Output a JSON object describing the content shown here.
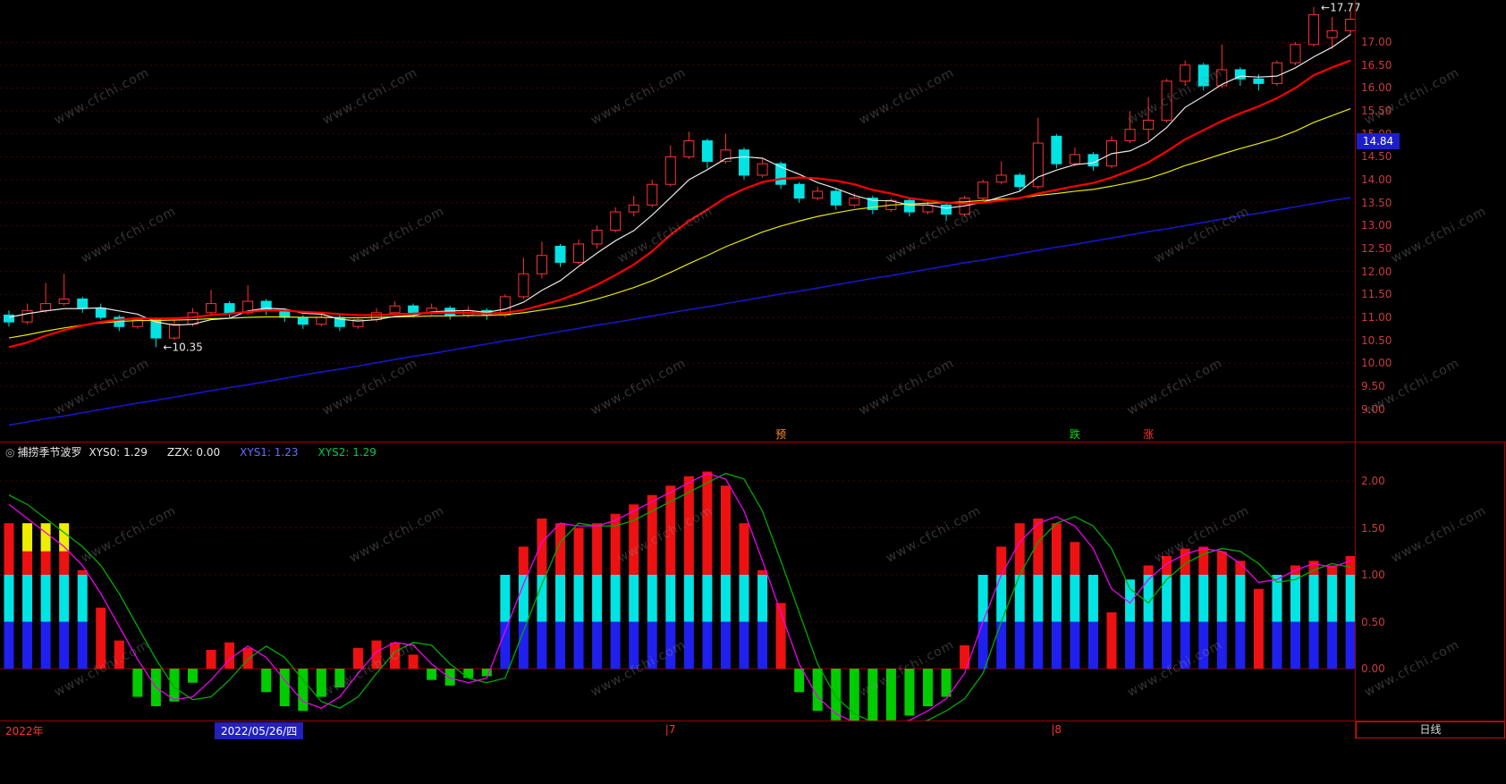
{
  "watermark": {
    "text": "www.cfchi.com"
  },
  "colors": {
    "candle_up": "#ff3232",
    "candle_down": "#00e4e4",
    "ma_white": "#e8e8e8",
    "ma_yellow": "#e8e800",
    "ma_red": "#ff0000",
    "ma_blue": "#1616c8",
    "bar_red": "#ee1111",
    "bar_green": "#00cc00",
    "bar_cyan": "#00e4e4",
    "bar_blue": "#2020ee",
    "bar_yellow": "#eeee00",
    "line_magenta": "#ee00ee",
    "line_green": "#00aa00",
    "axis_text": "#c83c3c",
    "badge_bg": "#1e1ec8",
    "grid": "#4a0000",
    "separator": "#9b0000"
  },
  "price_axis": {
    "ticks": [
      "17.00",
      "16.50",
      "16.00",
      "15.50",
      "15.00",
      "14.50",
      "14.00",
      "13.50",
      "13.00",
      "12.50",
      "12.00",
      "11.50",
      "11.00",
      "10.50",
      "10.00",
      "9.50",
      "9.00"
    ],
    "current_badge": "14.84"
  },
  "chart_data": [
    {
      "type": "candlestick",
      "ylim": [
        8.4,
        17.92
      ],
      "annotations": {
        "high": "←17.77",
        "low": "←10.35",
        "high_index": 71,
        "low_index": 8
      },
      "signals": [
        {
          "i": 42,
          "label": "预",
          "color": "#ff9020"
        },
        {
          "i": 58,
          "label": "跌",
          "color": "#00e000"
        },
        {
          "i": 62,
          "label": "涨",
          "color": "#ff3030"
        }
      ],
      "candles": [
        [
          11.05,
          11.15,
          10.8,
          10.9
        ],
        [
          10.9,
          11.3,
          10.85,
          11.15
        ],
        [
          11.15,
          11.75,
          11.1,
          11.3
        ],
        [
          11.3,
          11.95,
          11.25,
          11.4
        ],
        [
          11.4,
          11.45,
          11.1,
          11.2
        ],
        [
          11.2,
          11.3,
          10.95,
          11.0
        ],
        [
          11.0,
          11.05,
          10.7,
          10.8
        ],
        [
          10.8,
          11.0,
          10.75,
          10.95
        ],
        [
          10.95,
          11.0,
          10.35,
          10.55
        ],
        [
          10.55,
          10.95,
          10.5,
          10.85
        ],
        [
          10.85,
          11.2,
          10.8,
          11.1
        ],
        [
          11.1,
          11.6,
          11.05,
          11.3
        ],
        [
          11.3,
          11.35,
          11.0,
          11.1
        ],
        [
          11.1,
          11.7,
          11.05,
          11.35
        ],
        [
          11.35,
          11.4,
          11.05,
          11.15
        ],
        [
          11.15,
          11.2,
          10.9,
          11.0
        ],
        [
          11.0,
          11.05,
          10.75,
          10.85
        ],
        [
          10.85,
          11.1,
          10.8,
          11.0
        ],
        [
          11.0,
          11.05,
          10.7,
          10.8
        ],
        [
          10.8,
          11.0,
          10.75,
          10.95
        ],
        [
          10.95,
          11.2,
          10.9,
          11.1
        ],
        [
          11.1,
          11.35,
          11.05,
          11.25
        ],
        [
          11.25,
          11.3,
          11.0,
          11.1
        ],
        [
          11.1,
          11.3,
          11.05,
          11.2
        ],
        [
          11.2,
          11.25,
          10.95,
          11.05
        ],
        [
          11.05,
          11.25,
          11.0,
          11.15
        ],
        [
          11.15,
          11.2,
          10.95,
          11.05
        ],
        [
          11.05,
          11.5,
          11.0,
          11.45
        ],
        [
          11.45,
          12.3,
          11.4,
          11.95
        ],
        [
          11.95,
          12.65,
          11.85,
          12.35
        ],
        [
          12.55,
          12.6,
          12.1,
          12.2
        ],
        [
          12.2,
          12.7,
          12.15,
          12.6
        ],
        [
          12.6,
          13.0,
          12.5,
          12.9
        ],
        [
          12.9,
          13.4,
          12.85,
          13.3
        ],
        [
          13.3,
          13.65,
          13.2,
          13.45
        ],
        [
          13.45,
          14.0,
          13.4,
          13.9
        ],
        [
          13.9,
          14.75,
          13.85,
          14.5
        ],
        [
          14.5,
          15.05,
          14.45,
          14.85
        ],
        [
          14.85,
          14.9,
          14.25,
          14.4
        ],
        [
          14.4,
          15.0,
          14.35,
          14.65
        ],
        [
          14.65,
          14.7,
          14.0,
          14.1
        ],
        [
          14.1,
          14.45,
          14.05,
          14.35
        ],
        [
          14.35,
          14.4,
          13.8,
          13.9
        ],
        [
          13.9,
          13.95,
          13.5,
          13.6
        ],
        [
          13.6,
          13.85,
          13.55,
          13.75
        ],
        [
          13.75,
          13.8,
          13.35,
          13.45
        ],
        [
          13.45,
          13.7,
          13.4,
          13.6
        ],
        [
          13.6,
          13.65,
          13.25,
          13.35
        ],
        [
          13.35,
          13.6,
          13.3,
          13.55
        ],
        [
          13.55,
          13.6,
          13.2,
          13.3
        ],
        [
          13.3,
          13.55,
          13.25,
          13.45
        ],
        [
          13.45,
          13.5,
          13.1,
          13.25
        ],
        [
          13.25,
          13.65,
          13.2,
          13.6
        ],
        [
          13.6,
          14.0,
          13.55,
          13.95
        ],
        [
          13.95,
          14.4,
          13.9,
          14.1
        ],
        [
          14.1,
          14.15,
          13.75,
          13.85
        ],
        [
          13.85,
          15.35,
          13.8,
          14.8
        ],
        [
          14.95,
          15.0,
          14.25,
          14.35
        ],
        [
          14.35,
          14.7,
          14.3,
          14.55
        ],
        [
          14.55,
          14.6,
          14.2,
          14.3
        ],
        [
          14.3,
          14.95,
          14.25,
          14.85
        ],
        [
          14.85,
          15.5,
          14.8,
          15.1
        ],
        [
          15.1,
          15.8,
          14.85,
          15.3
        ],
        [
          15.3,
          16.2,
          15.25,
          16.15
        ],
        [
          16.15,
          16.6,
          16.05,
          16.5
        ],
        [
          16.5,
          16.55,
          15.95,
          16.05
        ],
        [
          16.05,
          16.95,
          16.0,
          16.4
        ],
        [
          16.4,
          16.45,
          16.05,
          16.2
        ],
        [
          16.2,
          16.3,
          15.95,
          16.1
        ],
        [
          16.1,
          16.6,
          16.05,
          16.55
        ],
        [
          16.55,
          17.0,
          16.5,
          16.95
        ],
        [
          16.95,
          17.77,
          16.9,
          17.6
        ],
        [
          17.1,
          17.55,
          16.85,
          17.25
        ],
        [
          17.25,
          17.7,
          17.15,
          17.5
        ]
      ],
      "ma_series": {
        "white": [
          11.0,
          11.08,
          11.14,
          11.19,
          11.19,
          11.21,
          11.14,
          11.07,
          10.9,
          10.83,
          10.85,
          10.95,
          10.98,
          11.14,
          11.2,
          11.18,
          11.09,
          11.07,
          10.96,
          10.92,
          10.95,
          11.02,
          11.04,
          11.12,
          11.14,
          11.15,
          11.11,
          11.18,
          11.33,
          11.59,
          11.8,
          12.11,
          12.4,
          12.67,
          12.89,
          13.23,
          13.61,
          14.0,
          14.22,
          14.46,
          14.5,
          14.47,
          14.28,
          14.12,
          13.94,
          13.81,
          13.66,
          13.55,
          13.54,
          13.45,
          13.45,
          13.38,
          13.43,
          13.51,
          13.63,
          13.75,
          14.06,
          14.21,
          14.33,
          14.37,
          14.57,
          14.63,
          14.82,
          15.14,
          15.58,
          15.82,
          16.08,
          16.26,
          16.24,
          16.26,
          16.44,
          16.68,
          16.89,
          17.17
        ],
        "yellow": [
          10.55,
          10.62,
          10.7,
          10.77,
          10.83,
          10.88,
          10.91,
          10.93,
          10.93,
          10.94,
          10.95,
          10.97,
          10.98,
          11.0,
          11.01,
          11.01,
          11.0,
          11.0,
          10.99,
          10.99,
          11.0,
          11.01,
          11.02,
          11.03,
          11.03,
          11.04,
          11.04,
          11.06,
          11.1,
          11.16,
          11.22,
          11.3,
          11.4,
          11.52,
          11.65,
          11.8,
          11.98,
          12.17,
          12.35,
          12.54,
          12.7,
          12.86,
          12.99,
          13.1,
          13.2,
          13.28,
          13.35,
          13.4,
          13.45,
          13.47,
          13.49,
          13.5,
          13.52,
          13.55,
          13.58,
          13.6,
          13.66,
          13.7,
          13.75,
          13.79,
          13.86,
          13.94,
          14.03,
          14.16,
          14.31,
          14.43,
          14.56,
          14.68,
          14.79,
          14.91,
          15.06,
          15.25,
          15.4,
          15.55
        ],
        "red": [
          10.35,
          10.45,
          10.6,
          10.72,
          10.82,
          10.9,
          10.95,
          10.98,
          10.97,
          10.98,
          11.0,
          11.05,
          11.08,
          11.12,
          11.15,
          11.15,
          11.12,
          11.1,
          11.07,
          11.05,
          11.05,
          11.07,
          11.08,
          11.1,
          11.1,
          11.1,
          11.08,
          11.1,
          11.16,
          11.27,
          11.38,
          11.53,
          11.71,
          11.92,
          12.15,
          12.44,
          12.8,
          13.1,
          13.35,
          13.61,
          13.8,
          13.95,
          14.02,
          14.05,
          14.03,
          13.98,
          13.9,
          13.78,
          13.7,
          13.6,
          13.55,
          13.5,
          13.48,
          13.5,
          13.55,
          13.6,
          13.7,
          13.78,
          13.86,
          13.93,
          14.05,
          14.2,
          14.38,
          14.62,
          14.88,
          15.08,
          15.28,
          15.45,
          15.6,
          15.78,
          16.0,
          16.28,
          16.45,
          16.6
        ],
        "blue": [
          8.65,
          8.72,
          8.79,
          8.85,
          8.92,
          8.99,
          9.06,
          9.13,
          9.19,
          9.26,
          9.33,
          9.4,
          9.47,
          9.53,
          9.6,
          9.67,
          9.74,
          9.81,
          9.87,
          9.94,
          10.01,
          10.08,
          10.15,
          10.21,
          10.28,
          10.35,
          10.42,
          10.49,
          10.55,
          10.62,
          10.69,
          10.76,
          10.83,
          10.89,
          10.96,
          11.03,
          11.1,
          11.17,
          11.23,
          11.3,
          11.37,
          11.44,
          11.51,
          11.57,
          11.64,
          11.71,
          11.78,
          11.85,
          11.91,
          11.98,
          12.05,
          12.12,
          12.19,
          12.25,
          12.32,
          12.39,
          12.46,
          12.53,
          12.59,
          12.66,
          12.73,
          12.8,
          12.87,
          12.93,
          13.0,
          13.07,
          13.14,
          13.21,
          13.27,
          13.34,
          13.41,
          13.48,
          13.55,
          13.61
        ]
      }
    },
    {
      "type": "bar+line",
      "name": "捕捞季节波罗",
      "icon": "◎",
      "params": [
        {
          "text": "XYS0: 1.29",
          "color": "#e8e8e8"
        },
        {
          "text": "ZZX: 0.00",
          "color": "#e8e8e8"
        },
        {
          "text": "XYS1: 1.23",
          "color": "#6a6aff"
        },
        {
          "text": "XYS2: 1.29",
          "color": "#00c84a"
        }
      ],
      "yticks": [
        "2.00",
        "1.50",
        "1.00",
        "0.50",
        "0.00"
      ],
      "bars": [
        1.55,
        1.55,
        1.55,
        1.55,
        1.05,
        0.65,
        0.3,
        -0.3,
        -0.4,
        -0.35,
        -0.15,
        0.2,
        0.28,
        0.22,
        -0.25,
        -0.4,
        -0.45,
        -0.3,
        -0.2,
        0.22,
        0.3,
        0.28,
        0.15,
        -0.12,
        -0.18,
        -0.1,
        -0.08,
        1.0,
        1.3,
        1.6,
        1.55,
        1.5,
        1.55,
        1.65,
        1.75,
        1.85,
        1.95,
        2.05,
        2.1,
        1.95,
        1.55,
        1.05,
        0.7,
        -0.25,
        -0.45,
        -0.55,
        -0.6,
        -0.6,
        -0.55,
        -0.5,
        -0.4,
        -0.3,
        0.25,
        1.0,
        1.3,
        1.55,
        1.6,
        1.55,
        1.35,
        1.0,
        0.6,
        0.95,
        1.1,
        1.2,
        1.28,
        1.3,
        1.25,
        1.15,
        0.85,
        1.0,
        1.1,
        1.15,
        1.1,
        1.2
      ],
      "yellow_top_indices": [
        1,
        2,
        3
      ],
      "line_magenta": [
        1.75,
        1.6,
        1.45,
        1.3,
        1.1,
        0.8,
        0.45,
        0.1,
        -0.2,
        -0.33,
        -0.3,
        -0.12,
        0.1,
        0.24,
        0.12,
        -0.12,
        -0.35,
        -0.42,
        -0.3,
        -0.05,
        0.18,
        0.28,
        0.25,
        0.05,
        -0.1,
        -0.15,
        -0.1,
        0.4,
        0.9,
        1.35,
        1.55,
        1.52,
        1.52,
        1.58,
        1.68,
        1.78,
        1.88,
        1.98,
        2.08,
        2.02,
        1.68,
        1.15,
        0.6,
        0.05,
        -0.3,
        -0.48,
        -0.57,
        -0.62,
        -0.6,
        -0.55,
        -0.45,
        -0.32,
        -0.05,
        0.5,
        1.0,
        1.35,
        1.55,
        1.62,
        1.52,
        1.28,
        0.85,
        0.7,
        0.95,
        1.12,
        1.22,
        1.28,
        1.25,
        1.12,
        0.92,
        0.95,
        1.05,
        1.12,
        1.08,
        1.15
      ],
      "line_green": [
        1.85,
        1.75,
        1.6,
        1.45,
        1.3,
        1.1,
        0.8,
        0.45,
        0.1,
        -0.2,
        -0.33,
        -0.3,
        -0.12,
        0.1,
        0.24,
        0.12,
        -0.12,
        -0.35,
        -0.42,
        -0.3,
        -0.05,
        0.18,
        0.28,
        0.25,
        0.05,
        -0.1,
        -0.15,
        -0.1,
        0.4,
        0.9,
        1.35,
        1.55,
        1.52,
        1.52,
        1.58,
        1.68,
        1.78,
        1.88,
        1.98,
        2.08,
        2.02,
        1.68,
        1.15,
        0.6,
        0.05,
        -0.3,
        -0.48,
        -0.57,
        -0.62,
        -0.6,
        -0.55,
        -0.45,
        -0.32,
        -0.05,
        0.5,
        1.0,
        1.35,
        1.55,
        1.62,
        1.52,
        1.28,
        0.85,
        0.7,
        0.95,
        1.12,
        1.22,
        1.28,
        1.25,
        1.12,
        0.92,
        0.95,
        1.05,
        1.12,
        1.08
      ]
    }
  ],
  "time_axis": {
    "year": "2022年",
    "selected_date": "2022/05/26/四",
    "month_marks": [
      {
        "i": 36,
        "label": "|7"
      },
      {
        "i": 57,
        "label": "|8"
      }
    ],
    "period": "日线"
  }
}
